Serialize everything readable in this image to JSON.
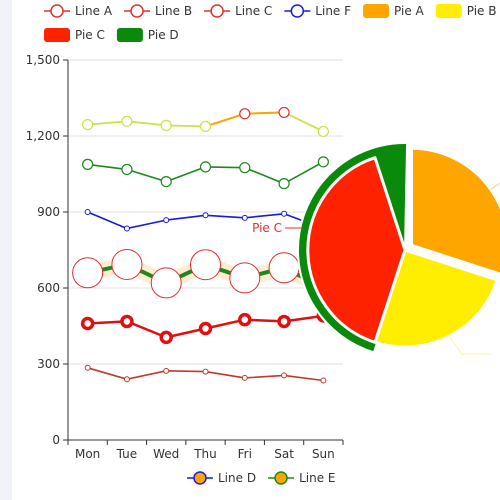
{
  "chart_data": {
    "type": "line",
    "title": "",
    "xlabel": "",
    "ylabel": "",
    "categories": [
      "Mon",
      "Tue",
      "Wed",
      "Thu",
      "Fri",
      "Sat",
      "Sun"
    ],
    "ylim": [
      0,
      1500
    ],
    "yticks": [
      "0",
      "300",
      "600",
      "900",
      "1,200",
      "1,500"
    ],
    "grid": true,
    "legend_top": [
      {
        "name": "Line A",
        "kind": "line",
        "color": "#e03131"
      },
      {
        "name": "Line B",
        "kind": "line",
        "color": "#e03131"
      },
      {
        "name": "Line C",
        "kind": "line",
        "color": "#e03131"
      },
      {
        "name": "Line F",
        "kind": "line",
        "color": "#1a1adb"
      },
      {
        "name": "Pie A",
        "kind": "rect",
        "color": "#ffa500"
      },
      {
        "name": "Pie B",
        "kind": "rect",
        "color": "#ffee00"
      },
      {
        "name": "Pie C",
        "kind": "rect",
        "color": "#ff2200"
      },
      {
        "name": "Pie D",
        "kind": "rect",
        "color": "#0a8a0a"
      }
    ],
    "legend_bottom": [
      {
        "name": "Line D",
        "kind": "line-dot",
        "color": "#1a1adb",
        "fill": "#ffa500"
      },
      {
        "name": "Line E",
        "kind": "line-dot",
        "color": "#1a8a1a",
        "fill": "#ffa500"
      }
    ],
    "series": [
      {
        "name": "Line A",
        "values": [
          1245,
          1258,
          1242,
          1238,
          1288,
          1293,
          1218
        ],
        "color": "#ffa500",
        "marker_color": "#cfe04a",
        "marker": "small"
      },
      {
        "name": "Line B",
        "values": [
          1088,
          1068,
          1020,
          1078,
          1075,
          1012,
          1098
        ],
        "color": "#1a8a1a",
        "marker_color": "#1a8a1a",
        "marker": "small"
      },
      {
        "name": "Line F",
        "values": [
          900,
          835,
          868,
          887,
          877,
          893,
          835
        ],
        "color": "#1a1adb",
        "marker_color": "#1a1adb",
        "marker": "tiny"
      },
      {
        "name": "Line C",
        "values": [
          660,
          693,
          620,
          692,
          640,
          680,
          600
        ],
        "color": "#1a8a1a",
        "marker_color": "#e03131",
        "marker": "big"
      },
      {
        "name": "Line D",
        "values": [
          460,
          468,
          405,
          440,
          475,
          468,
          490
        ],
        "color": "#e01010",
        "marker_color": "#e01010",
        "marker": "ring"
      },
      {
        "name": "Line E",
        "values": [
          285,
          240,
          273,
          270,
          245,
          255,
          235
        ],
        "color": "#c0392b",
        "marker_color": "#c0392b",
        "marker": "tiny"
      }
    ],
    "pie": {
      "label": "Pie C",
      "slices": [
        {
          "name": "Pie A",
          "value": 30,
          "color": "#ffa500"
        },
        {
          "name": "Pie B",
          "value": 25,
          "color": "#ffee00"
        },
        {
          "name": "Pie C",
          "value": 40,
          "color": "#ff2200"
        },
        {
          "name": "Pie D",
          "value": 5,
          "color": "#0a8a0a"
        }
      ]
    }
  }
}
